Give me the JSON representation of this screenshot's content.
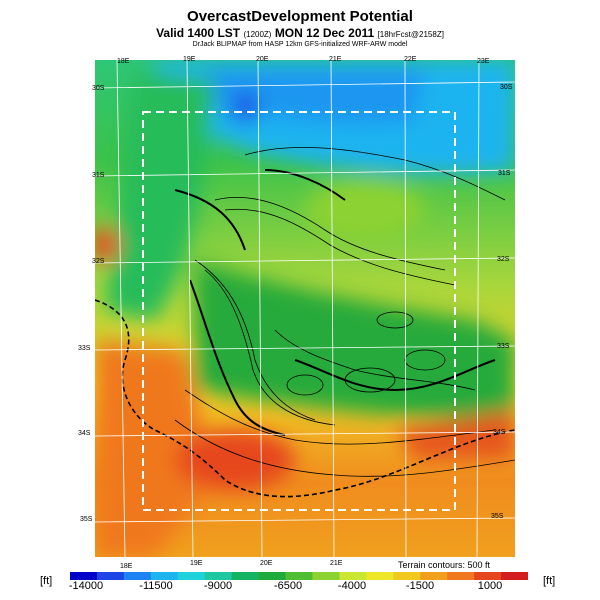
{
  "header": {
    "title": "OvercastDevelopment Potential",
    "valid_prefix": "Valid 1400 LST",
    "valid_small": "(1200Z)",
    "valid_date": "MON 12 Dec 2011",
    "forecast_small": "[18hrFcst@2158Z]",
    "subtitle": "DrJack BLIPMAP from HASP 12km GFS-initialized WRF-ARW model"
  },
  "map": {
    "top_lon_labels": [
      "18E",
      "19E",
      "20E",
      "21E",
      "22E",
      "23E"
    ],
    "bottom_lon_labels": [
      "18E",
      "19E",
      "20E",
      "21E"
    ],
    "left_lat_labels": [
      "30S",
      "31S",
      "32S",
      "33S",
      "34S",
      "35S"
    ],
    "right_lat_labels": [
      "30S",
      "31S",
      "32S",
      "33S",
      "34S",
      "35S"
    ],
    "terrain_note": "Terrain contours: 500 ft"
  },
  "legend": {
    "units_left": "[ft]",
    "units_right": "[ft]",
    "labels": [
      "-14000",
      "-11500",
      "-9000",
      "-6500",
      "-4000",
      "-1500",
      "1000"
    ],
    "colors": [
      "#0000c8",
      "#1e46e6",
      "#1e82f0",
      "#1eb4f0",
      "#1ed2dc",
      "#1ec8a0",
      "#14b464",
      "#1eaa3c",
      "#50be32",
      "#8cd232",
      "#c8e632",
      "#f0e628",
      "#f0c81e",
      "#f0a01e",
      "#f0781e",
      "#e6461e",
      "#d21e1e"
    ]
  }
}
